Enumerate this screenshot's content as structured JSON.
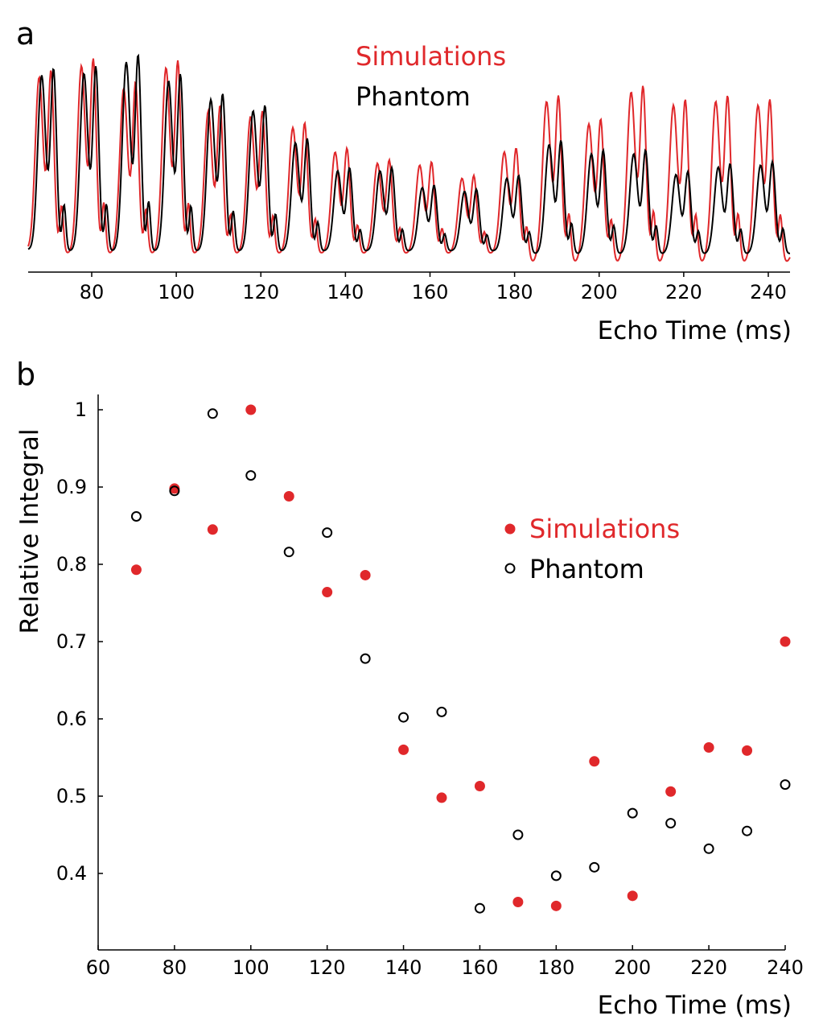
{
  "colors": {
    "simulations": "#e0282b",
    "phantom": "#000000"
  },
  "chart_data": [
    {
      "panel_label": "a",
      "type": "line",
      "xlabel": "Echo Time (ms)",
      "ylabel": "",
      "xlim": [
        65,
        245
      ],
      "xticks": [
        80,
        100,
        120,
        140,
        160,
        180,
        200,
        220,
        240
      ],
      "grid": false,
      "legend_placement": "top-center",
      "echo_times": [
        70,
        80,
        90,
        100,
        110,
        120,
        130,
        140,
        150,
        160,
        170,
        180,
        190,
        200,
        210,
        220,
        230,
        240
      ],
      "series": [
        {
          "name": "Simulations",
          "color": "#e0282b",
          "peak_amplitudes": [
            0.92,
            0.98,
            0.86,
            0.97,
            0.74,
            0.71,
            0.65,
            0.52,
            0.46,
            0.45,
            0.38,
            0.52,
            0.79,
            0.67,
            0.84,
            0.77,
            0.79,
            0.77
          ]
        },
        {
          "name": "Phantom",
          "color": "#000000",
          "peak_amplitudes": [
            0.93,
            0.94,
            1.0,
            0.9,
            0.8,
            0.74,
            0.57,
            0.42,
            0.42,
            0.33,
            0.31,
            0.38,
            0.56,
            0.51,
            0.51,
            0.4,
            0.44,
            0.45
          ]
        }
      ]
    },
    {
      "panel_label": "b",
      "type": "scatter",
      "xlabel": "Echo Time (ms)",
      "ylabel": "Relative Integral",
      "xlim": [
        60,
        240
      ],
      "ylim": [
        0.3,
        1.0
      ],
      "xticks": [
        60,
        80,
        100,
        120,
        140,
        160,
        180,
        200,
        220,
        240
      ],
      "yticks": [
        0.4,
        0.5,
        0.6,
        0.7,
        0.8,
        0.9,
        1
      ],
      "ytick_labels": [
        "0.4",
        "0.5",
        "0.6",
        "0.7",
        "0.8",
        "0.9",
        "1"
      ],
      "grid": false,
      "legend_placement": "center-right",
      "x": [
        70,
        80,
        90,
        100,
        110,
        120,
        130,
        140,
        150,
        160,
        170,
        180,
        190,
        200,
        210,
        220,
        230,
        240
      ],
      "series": [
        {
          "name": "Simulations",
          "color": "#e0282b",
          "marker": "filled-circle",
          "values": [
            0.793,
            0.898,
            0.845,
            1.0,
            0.888,
            0.764,
            0.786,
            0.56,
            0.498,
            0.513,
            0.363,
            0.358,
            0.545,
            0.371,
            0.506,
            0.563,
            0.559,
            0.7
          ]
        },
        {
          "name": "Phantom",
          "color": "#000000",
          "marker": "open-circle",
          "values": [
            0.862,
            0.895,
            0.995,
            0.915,
            0.816,
            0.841,
            0.678,
            0.602,
            0.609,
            0.355,
            0.45,
            0.397,
            0.408,
            0.478,
            0.465,
            0.432,
            0.455,
            0.515
          ]
        }
      ]
    }
  ]
}
